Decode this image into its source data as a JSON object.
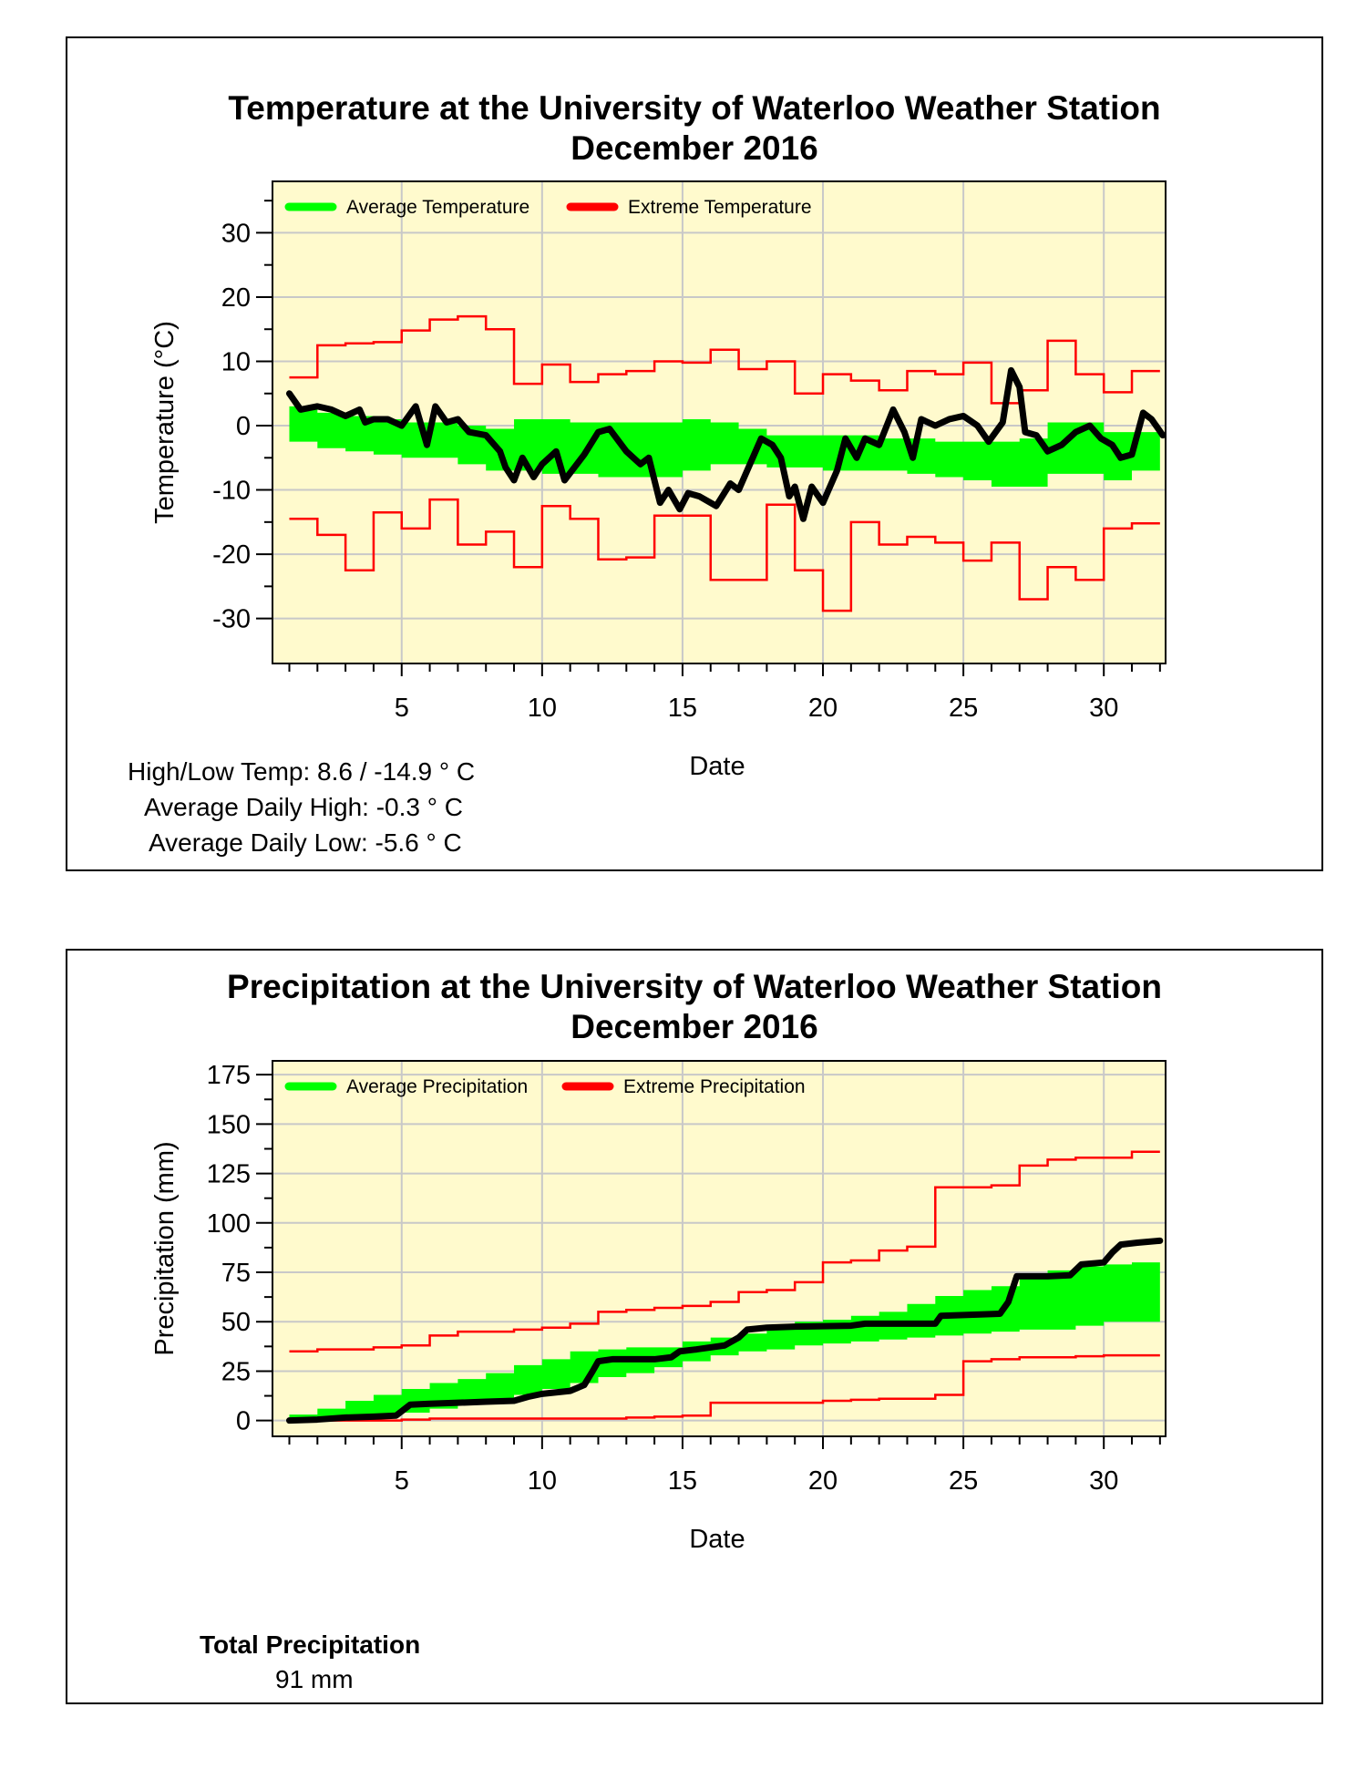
{
  "charts": {
    "temperature": {
      "title_line1": "Temperature at the University of Waterloo Weather Station",
      "title_line2": "December 2016",
      "stats": {
        "high_low": "High/Low Temp:  8.6 / -14.9 ° C",
        "avg_high": "Average Daily High:  -0.3 ° C",
        "avg_low": "Average Daily Low:  -5.6 ° C"
      }
    },
    "precipitation": {
      "title_line1": "Precipitation at the University of Waterloo Weather Station",
      "title_line2": "December 2016",
      "stats": {
        "total_label": "Total Precipitation",
        "total_value": "91 mm"
      }
    }
  },
  "colors": {
    "plot_bg": "#FFFACD",
    "average_band": "#00FF00",
    "extreme": "#FF0000",
    "observed": "#000000",
    "grid": "#C8C8C8"
  },
  "chart_data": [
    {
      "type": "line",
      "title": "Temperature at the University of Waterloo Weather Station December 2016",
      "xlabel": "Date",
      "ylabel": "Temperature (°C)",
      "xlim": [
        0.4,
        32.2
      ],
      "ylim": [
        -37,
        38
      ],
      "xticks": [
        5,
        10,
        15,
        20,
        25,
        30
      ],
      "yticks": [
        -30,
        -20,
        -10,
        0,
        10,
        20,
        30
      ],
      "grid": true,
      "legend": [
        {
          "label": "Average Temperature",
          "color": "#00FF00"
        },
        {
          "label": "Extreme Temperature",
          "color": "#FF0000"
        }
      ],
      "days": [
        1,
        2,
        3,
        4,
        5,
        6,
        7,
        8,
        9,
        10,
        11,
        12,
        13,
        14,
        15,
        16,
        17,
        18,
        19,
        20,
        21,
        22,
        23,
        24,
        25,
        26,
        27,
        28,
        29,
        30,
        31
      ],
      "avg_high": [
        3,
        2,
        1.5,
        1,
        0.5,
        0.5,
        0,
        -0.5,
        1,
        1,
        0.5,
        0.5,
        0.5,
        0.5,
        1,
        0.5,
        -0.5,
        -1.5,
        -1.5,
        -1.5,
        -1.5,
        -2,
        -2,
        -2.5,
        -2.5,
        -2.5,
        -2,
        0.5,
        0.5,
        -1,
        -1
      ],
      "avg_low": [
        -2.5,
        -3.5,
        -4,
        -4.5,
        -5,
        -5,
        -6,
        -7,
        -7,
        -7.5,
        -7.5,
        -8,
        -8,
        -8,
        -7,
        -6,
        -6,
        -6.5,
        -6.5,
        -7,
        -7,
        -7,
        -7.5,
        -8,
        -8.5,
        -9.5,
        -9.5,
        -7.5,
        -7.5,
        -8.5,
        -7
      ],
      "extreme_high": [
        7.5,
        12.5,
        12.8,
        13,
        14.8,
        16.5,
        17,
        15,
        6.5,
        9.5,
        6.8,
        8,
        8.5,
        10,
        9.8,
        11.8,
        8.8,
        10,
        5,
        8,
        7,
        5.5,
        8.5,
        8,
        9.8,
        3.5,
        5.5,
        13.2,
        8,
        5.2,
        8.5
      ],
      "extreme_low": [
        -14.5,
        -17,
        -22.5,
        -13.5,
        -16,
        -11.5,
        -18.5,
        -16.5,
        -22,
        -12.5,
        -14.5,
        -20.8,
        -20.5,
        -14,
        -14,
        -24,
        -24,
        -12.3,
        -22.5,
        -28.8,
        -15,
        -18.5,
        -17.3,
        -18.2,
        -21,
        -18.2,
        -27,
        -22,
        -24,
        -16,
        -15.2
      ],
      "observed": [
        [
          1,
          5
        ],
        [
          1.4,
          2.5
        ],
        [
          2,
          3
        ],
        [
          2.5,
          2.5
        ],
        [
          3,
          1.5
        ],
        [
          3.5,
          2.5
        ],
        [
          3.7,
          0.5
        ],
        [
          4,
          1
        ],
        [
          4.5,
          1
        ],
        [
          5,
          0
        ],
        [
          5.5,
          3
        ],
        [
          5.9,
          -3
        ],
        [
          6.2,
          3
        ],
        [
          6.6,
          0.5
        ],
        [
          7,
          1
        ],
        [
          7.4,
          -1
        ],
        [
          8,
          -1.5
        ],
        [
          8.5,
          -4
        ],
        [
          8.7,
          -6.5
        ],
        [
          9,
          -8.5
        ],
        [
          9.3,
          -5
        ],
        [
          9.7,
          -8
        ],
        [
          10,
          -6
        ],
        [
          10.5,
          -4
        ],
        [
          10.8,
          -8.5
        ],
        [
          11.5,
          -4.5
        ],
        [
          12,
          -1
        ],
        [
          12.4,
          -0.5
        ],
        [
          13,
          -4
        ],
        [
          13.5,
          -6
        ],
        [
          13.8,
          -5
        ],
        [
          14.2,
          -12
        ],
        [
          14.5,
          -10
        ],
        [
          14.9,
          -13
        ],
        [
          15.2,
          -10.5
        ],
        [
          15.6,
          -11
        ],
        [
          16.2,
          -12.5
        ],
        [
          16.7,
          -9
        ],
        [
          17,
          -10
        ],
        [
          17.5,
          -5
        ],
        [
          17.8,
          -2
        ],
        [
          18.2,
          -3
        ],
        [
          18.5,
          -5
        ],
        [
          18.8,
          -11
        ],
        [
          19,
          -9.5
        ],
        [
          19.3,
          -14.5
        ],
        [
          19.6,
          -9.5
        ],
        [
          20,
          -12
        ],
        [
          20.5,
          -7
        ],
        [
          20.8,
          -2
        ],
        [
          21.2,
          -5
        ],
        [
          21.5,
          -2
        ],
        [
          22,
          -3
        ],
        [
          22.5,
          2.5
        ],
        [
          22.9,
          -1
        ],
        [
          23.2,
          -5
        ],
        [
          23.5,
          1
        ],
        [
          24,
          0
        ],
        [
          24.5,
          1
        ],
        [
          25,
          1.5
        ],
        [
          25.5,
          0
        ],
        [
          25.9,
          -2.5
        ],
        [
          26.4,
          0.5
        ],
        [
          26.7,
          8.6
        ],
        [
          27,
          6
        ],
        [
          27.2,
          -1
        ],
        [
          27.6,
          -1.5
        ],
        [
          28,
          -4
        ],
        [
          28.5,
          -3
        ],
        [
          29,
          -1
        ],
        [
          29.5,
          0
        ],
        [
          29.9,
          -2
        ],
        [
          30.3,
          -3
        ],
        [
          30.6,
          -5
        ],
        [
          31,
          -4.5
        ],
        [
          31.4,
          2
        ],
        [
          31.7,
          1
        ],
        [
          32.1,
          -1.5
        ]
      ]
    },
    {
      "type": "line",
      "title": "Precipitation at the University of Waterloo Weather Station December 2016",
      "xlabel": "Date",
      "ylabel": "Precipitation (mm)",
      "xlim": [
        0.4,
        32.2
      ],
      "ylim": [
        -8,
        182
      ],
      "xticks": [
        5,
        10,
        15,
        20,
        25,
        30
      ],
      "yticks": [
        0,
        25,
        50,
        75,
        100,
        125,
        150,
        175
      ],
      "grid": true,
      "legend": [
        {
          "label": "Average Precipitation",
          "color": "#00FF00"
        },
        {
          "label": "Extreme Precipitation",
          "color": "#FF0000"
        }
      ],
      "days": [
        1,
        2,
        3,
        4,
        5,
        6,
        7,
        8,
        9,
        10,
        11,
        12,
        13,
        14,
        15,
        16,
        17,
        18,
        19,
        20,
        21,
        22,
        23,
        24,
        25,
        26,
        27,
        28,
        29,
        30,
        31
      ],
      "avg_upper": [
        3,
        6,
        10,
        13,
        16,
        19,
        21,
        24,
        28,
        31,
        35,
        36,
        37,
        37,
        40,
        42,
        44,
        48,
        50,
        51,
        53,
        55,
        59,
        63,
        66,
        68,
        74,
        76,
        78,
        79,
        80
      ],
      "avg_lower": [
        0,
        1,
        2,
        3,
        4,
        6,
        8,
        10,
        13,
        16,
        19,
        22,
        24,
        27,
        30,
        33,
        35,
        36,
        38,
        39,
        40,
        41,
        42,
        43,
        44,
        45,
        46,
        46,
        48,
        50,
        50
      ],
      "extreme_high": [
        35,
        36,
        36,
        37,
        38,
        43,
        45,
        45,
        46,
        47,
        49,
        55,
        56,
        57,
        58,
        60,
        65,
        66,
        70,
        80,
        81,
        86,
        88,
        118,
        118,
        119,
        129,
        132,
        133,
        133,
        136
      ],
      "extreme_low": [
        0,
        0,
        0,
        0,
        0.5,
        1,
        1,
        1,
        1,
        1,
        1,
        1,
        1.5,
        2,
        2.5,
        9,
        9,
        9,
        9,
        10,
        10.5,
        11,
        11,
        13,
        30,
        31,
        32,
        32,
        32.5,
        33,
        33
      ],
      "observed": [
        [
          1,
          0
        ],
        [
          2,
          0.5
        ],
        [
          3,
          1.5
        ],
        [
          4,
          2
        ],
        [
          4.8,
          2.5
        ],
        [
          5.3,
          8
        ],
        [
          6,
          8.5
        ],
        [
          7,
          9
        ],
        [
          8,
          9.5
        ],
        [
          9,
          10
        ],
        [
          9.5,
          12
        ],
        [
          10,
          13.5
        ],
        [
          11,
          15
        ],
        [
          11.5,
          18
        ],
        [
          11.8,
          25
        ],
        [
          12,
          30
        ],
        [
          12.5,
          31
        ],
        [
          14,
          31
        ],
        [
          14.6,
          32
        ],
        [
          14.9,
          35
        ],
        [
          15.5,
          36
        ],
        [
          16.5,
          38
        ],
        [
          17,
          42
        ],
        [
          17.3,
          46
        ],
        [
          18,
          47
        ],
        [
          19,
          47.5
        ],
        [
          21,
          48
        ],
        [
          21.5,
          49
        ],
        [
          24,
          49
        ],
        [
          24.2,
          53
        ],
        [
          26.3,
          54
        ],
        [
          26.6,
          60
        ],
        [
          26.9,
          73
        ],
        [
          28,
          73
        ],
        [
          28.8,
          73.5
        ],
        [
          29.2,
          79
        ],
        [
          30,
          80
        ],
        [
          30.3,
          85
        ],
        [
          30.6,
          89
        ],
        [
          31.2,
          90
        ],
        [
          32,
          91
        ]
      ]
    }
  ]
}
